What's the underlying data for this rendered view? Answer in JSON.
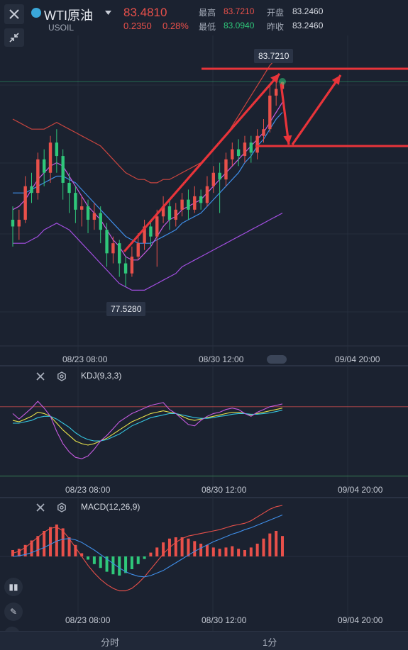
{
  "header": {
    "symbol_name": "WTI原油",
    "symbol_code": "USOIL",
    "price": "83.4810",
    "change": "0.2350",
    "change_pct": "0.28%",
    "high_label": "最高",
    "high_value": "83.7210",
    "low_label": "最低",
    "low_value": "83.0940",
    "open_label": "开盘",
    "open_value": "83.2460",
    "prev_close_label": "昨收",
    "prev_close_value": "83.2460"
  },
  "annotations": {
    "high_tag": "83.7210",
    "low_tag": "77.5280"
  },
  "time_axis": {
    "labels": [
      "08/23 08:00",
      "08/30 12:00",
      "09/04 20:00"
    ]
  },
  "kdj": {
    "title": "KDJ(9,3,3)"
  },
  "macd": {
    "title": "MACD(12,26,9)"
  },
  "footer": {
    "tab_timeshare": "分时",
    "tab_period": "1分"
  },
  "colors": {
    "up": "#e8504a",
    "down": "#2fc77a",
    "kdj_k": "#e8e24a",
    "kdj_d": "#35c6e0",
    "kdj_j": "#c65be0",
    "macd_dif": "#e8504a",
    "macd_dea": "#3f8ee8"
  },
  "chart_data": [
    {
      "type": "candlestick",
      "y_range": [
        76.6,
        84.6
      ],
      "candles": [
        [
          79.6,
          79.4,
          80.0,
          78.8
        ],
        [
          79.4,
          79.6,
          79.9,
          79.0
        ],
        [
          79.6,
          80.6,
          80.9,
          79.5
        ],
        [
          80.6,
          80.4,
          81.0,
          80.1
        ],
        [
          80.4,
          81.4,
          81.6,
          80.2
        ],
        [
          81.4,
          81.0,
          81.7,
          80.6
        ],
        [
          81.0,
          81.9,
          82.1,
          80.7
        ],
        [
          81.9,
          81.5,
          82.3,
          81.0
        ],
        [
          81.5,
          80.7,
          81.7,
          80.2
        ],
        [
          80.7,
          80.4,
          81.0,
          79.8
        ],
        [
          80.4,
          79.9,
          80.6,
          79.5
        ],
        [
          79.9,
          80.0,
          80.3,
          79.4
        ],
        [
          80.0,
          79.6,
          80.2,
          79.2
        ],
        [
          79.6,
          79.8,
          80.1,
          79.3
        ],
        [
          79.8,
          79.3,
          80.0,
          78.9
        ],
        [
          79.3,
          78.6,
          79.5,
          78.2
        ],
        [
          78.6,
          78.9,
          79.1,
          78.3
        ],
        [
          78.9,
          78.3,
          79.0,
          77.9
        ],
        [
          78.3,
          78.0,
          78.5,
          77.6
        ],
        [
          78.0,
          78.5,
          78.8,
          77.9
        ],
        [
          78.5,
          78.9,
          79.2,
          78.4
        ],
        [
          78.9,
          79.4,
          79.6,
          78.7
        ],
        [
          79.4,
          79.1,
          79.6,
          78.8
        ],
        [
          79.1,
          79.7,
          79.9,
          78.2
        ],
        [
          79.7,
          80.0,
          80.3,
          79.5
        ],
        [
          80.0,
          79.6,
          80.2,
          79.3
        ],
        [
          79.6,
          79.9,
          80.1,
          79.4
        ],
        [
          79.9,
          80.2,
          80.4,
          79.7
        ],
        [
          80.2,
          79.9,
          80.5,
          79.6
        ],
        [
          79.9,
          80.3,
          80.6,
          79.8
        ],
        [
          80.3,
          80.1,
          80.5,
          79.9
        ],
        [
          80.1,
          80.6,
          80.9,
          80.0
        ],
        [
          80.6,
          81.0,
          81.2,
          80.4
        ],
        [
          81.0,
          80.8,
          81.3,
          79.8
        ],
        [
          80.8,
          81.4,
          81.6,
          80.6
        ],
        [
          81.4,
          81.7,
          81.9,
          81.2
        ],
        [
          81.7,
          81.5,
          82.0,
          81.2
        ],
        [
          81.5,
          81.9,
          82.1,
          81.3
        ],
        [
          81.9,
          81.6,
          82.1,
          81.3
        ],
        [
          81.6,
          82.1,
          82.3,
          81.4
        ],
        [
          82.1,
          82.3,
          82.6,
          81.9
        ],
        [
          82.3,
          83.3,
          83.6,
          82.2
        ],
        [
          83.3,
          83.5,
          83.7,
          83.0
        ],
        [
          83.5,
          83.7,
          83.72,
          83.3
        ]
      ],
      "bands": {
        "upper": [
          82.6,
          82.5,
          82.4,
          82.3,
          82.3,
          82.3,
          82.4,
          82.5,
          82.4,
          82.3,
          82.2,
          82.1,
          82.0,
          81.9,
          81.8,
          81.6,
          81.4,
          81.2,
          81.0,
          80.9,
          80.8,
          80.8,
          80.7,
          80.7,
          80.8,
          80.8,
          80.9,
          81.0,
          81.1,
          81.2,
          81.3,
          81.5,
          81.7,
          81.9,
          82.1,
          82.4,
          82.7,
          83.0,
          83.3,
          83.6,
          83.9,
          84.2,
          84.4,
          84.5
        ],
        "middle": [
          80.4,
          80.4,
          80.4,
          80.5,
          80.6,
          80.7,
          80.8,
          80.9,
          80.9,
          80.8,
          80.7,
          80.5,
          80.3,
          80.1,
          79.9,
          79.7,
          79.5,
          79.3,
          79.1,
          79.0,
          78.9,
          78.9,
          78.9,
          79.0,
          79.1,
          79.2,
          79.3,
          79.5,
          79.6,
          79.7,
          79.8,
          80.0,
          80.2,
          80.4,
          80.6,
          80.8,
          81.0,
          81.3,
          81.5,
          81.8,
          82.0,
          82.3,
          82.6,
          82.8
        ],
        "lower": [
          78.9,
          78.9,
          78.9,
          79.0,
          79.1,
          79.3,
          79.4,
          79.5,
          79.4,
          79.3,
          79.1,
          78.9,
          78.7,
          78.5,
          78.3,
          78.1,
          77.9,
          77.7,
          77.6,
          77.5,
          77.5,
          77.5,
          77.6,
          77.7,
          77.8,
          77.9,
          78.0,
          78.2,
          78.3,
          78.4,
          78.5,
          78.6,
          78.7,
          78.8,
          78.9,
          79.0,
          79.1,
          79.2,
          79.3,
          79.4,
          79.5,
          79.6,
          79.7,
          79.8
        ]
      },
      "ma": [
        79.9,
        80.0,
        80.2,
        80.5,
        80.8,
        81.0,
        81.2,
        81.3,
        81.2,
        80.9,
        80.6,
        80.3,
        80.0,
        79.8,
        79.6,
        79.3,
        79.0,
        78.8,
        78.5,
        78.4,
        78.4,
        78.6,
        78.8,
        79.1,
        79.4,
        79.6,
        79.7,
        79.9,
        80.0,
        80.1,
        80.2,
        80.4,
        80.6,
        80.8,
        81.0,
        81.2,
        81.4,
        81.6,
        81.8,
        82.0,
        82.2,
        82.5,
        82.8,
        83.1
      ]
    },
    {
      "type": "line",
      "name": "KDJ(9,3,3)",
      "y_range": [
        -30,
        115
      ],
      "series": [
        {
          "name": "K",
          "values": [
            60,
            58,
            62,
            66,
            72,
            70,
            66,
            56,
            46,
            38,
            30,
            26,
            24,
            26,
            30,
            34,
            40,
            46,
            52,
            58,
            62,
            66,
            70,
            72,
            74,
            72,
            70,
            66,
            62,
            60,
            62,
            64,
            66,
            68,
            70,
            72,
            72,
            70,
            68,
            70,
            72,
            74,
            76,
            78
          ]
        },
        {
          "name": "D",
          "values": [
            56,
            56,
            58,
            60,
            64,
            66,
            66,
            62,
            56,
            50,
            42,
            36,
            32,
            30,
            30,
            32,
            36,
            40,
            46,
            52,
            56,
            60,
            64,
            66,
            68,
            70,
            70,
            68,
            66,
            64,
            63,
            63,
            64,
            66,
            67,
            69,
            70,
            70,
            69,
            69,
            70,
            71,
            73,
            75
          ]
        },
        {
          "name": "J",
          "values": [
            70,
            62,
            70,
            78,
            88,
            78,
            66,
            44,
            26,
            14,
            6,
            4,
            8,
            18,
            30,
            38,
            48,
            58,
            64,
            70,
            74,
            78,
            82,
            84,
            86,
            76,
            70,
            62,
            54,
            52,
            60,
            66,
            70,
            72,
            76,
            78,
            76,
            70,
            66,
            72,
            76,
            80,
            82,
            84
          ]
        }
      ]
    },
    {
      "type": "bar",
      "name": "MACD(12,26,9)",
      "y_range": [
        -0.7,
        0.85
      ],
      "histogram": [
        0.1,
        0.12,
        0.18,
        0.25,
        0.32,
        0.4,
        0.46,
        0.5,
        0.44,
        0.3,
        0.18,
        0.05,
        -0.05,
        -0.12,
        -0.18,
        -0.24,
        -0.28,
        -0.3,
        -0.26,
        -0.2,
        -0.12,
        -0.04,
        0.06,
        0.14,
        0.22,
        0.28,
        0.3,
        0.3,
        0.28,
        0.24,
        0.2,
        0.18,
        0.14,
        0.12,
        0.14,
        0.16,
        0.12,
        0.1,
        0.14,
        0.2,
        0.28,
        0.36,
        0.4,
        0.32
      ],
      "dif": [
        0.05,
        0.08,
        0.14,
        0.22,
        0.3,
        0.38,
        0.44,
        0.46,
        0.4,
        0.28,
        0.14,
        0.0,
        -0.14,
        -0.26,
        -0.36,
        -0.44,
        -0.5,
        -0.54,
        -0.54,
        -0.5,
        -0.42,
        -0.32,
        -0.2,
        -0.08,
        0.04,
        0.14,
        0.22,
        0.28,
        0.32,
        0.34,
        0.36,
        0.38,
        0.4,
        0.42,
        0.45,
        0.48,
        0.5,
        0.52,
        0.56,
        0.62,
        0.68,
        0.74,
        0.78,
        0.8
      ],
      "dea": [
        0.0,
        0.01,
        0.03,
        0.06,
        0.1,
        0.14,
        0.19,
        0.24,
        0.27,
        0.28,
        0.26,
        0.22,
        0.16,
        0.1,
        0.03,
        -0.04,
        -0.11,
        -0.18,
        -0.24,
        -0.28,
        -0.31,
        -0.32,
        -0.3,
        -0.26,
        -0.22,
        -0.16,
        -0.1,
        -0.04,
        0.02,
        0.08,
        0.13,
        0.18,
        0.23,
        0.27,
        0.31,
        0.35,
        0.38,
        0.42,
        0.45,
        0.49,
        0.53,
        0.57,
        0.61,
        0.65
      ]
    }
  ]
}
